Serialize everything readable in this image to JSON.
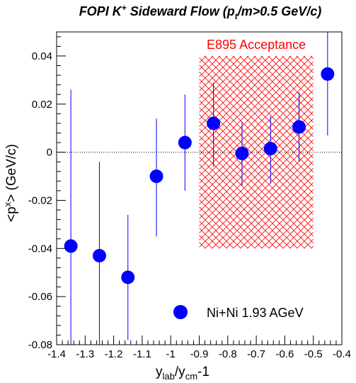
{
  "chart_data": {
    "type": "scatter",
    "title": {
      "prefix": "FOPI K",
      "sup": "+",
      "middle": " Sideward Flow (p",
      "sub": "t",
      "suffix": "/m>0.5 GeV/c)"
    },
    "xlabel": {
      "main": "y",
      "sub1": "lab",
      "slash": "/y",
      "sub2": "cm",
      "suffix": "-1"
    },
    "ylabel": {
      "pre": "<p",
      "sup": "x",
      "post": "> (GeV/c)"
    },
    "xlim": [
      -1.4,
      -0.4
    ],
    "ylim": [
      -0.08,
      0.05
    ],
    "x_ticks": [
      -1.4,
      -1.3,
      -1.2,
      -1.1,
      -1.0,
      -0.9,
      -0.8,
      -0.7,
      -0.6,
      -0.5,
      -0.4
    ],
    "x_tick_labels": [
      "-1.4",
      "-1.3",
      "-1.2",
      "-1.1",
      "-1",
      "-0.9",
      "-0.8",
      "-0.7",
      "-0.6",
      "-0.5",
      "-0.4"
    ],
    "y_ticks": [
      -0.08,
      -0.06,
      -0.04,
      -0.02,
      0,
      0.02,
      0.04
    ],
    "y_tick_labels": [
      "-0.08",
      "-0.06",
      "-0.04",
      "-0.02",
      "0",
      "0.02",
      "0.04"
    ],
    "grid": false,
    "zero_line": true,
    "series": [
      {
        "name": "Ni+Ni 1.93 AGeV",
        "color": "#0000ff",
        "points": [
          {
            "x": -1.35,
            "y": -0.039,
            "ylo": -0.08,
            "yhi": 0.026
          },
          {
            "x": -1.25,
            "y": -0.043,
            "ylo": -0.08,
            "yhi": -0.004
          },
          {
            "x": -1.15,
            "y": -0.052,
            "ylo": -0.078,
            "yhi": -0.026
          },
          {
            "x": -1.05,
            "y": -0.01,
            "ylo": -0.035,
            "yhi": 0.014
          },
          {
            "x": -0.95,
            "y": 0.004,
            "ylo": -0.016,
            "yhi": 0.024
          },
          {
            "x": -0.85,
            "y": 0.012,
            "ylo": -0.006,
            "yhi": 0.029
          },
          {
            "x": -0.75,
            "y": -0.0005,
            "ylo": -0.014,
            "yhi": 0.0125
          },
          {
            "x": -0.65,
            "y": 0.0015,
            "ylo": -0.013,
            "yhi": 0.015
          },
          {
            "x": -0.55,
            "y": 0.0105,
            "ylo": -0.004,
            "yhi": 0.025
          },
          {
            "x": -0.45,
            "y": 0.0325,
            "ylo": 0.007,
            "yhi": 0.05
          }
        ]
      }
    ],
    "acceptance_region": {
      "label": "E895 Acceptance",
      "x": [
        -0.9,
        -0.5
      ],
      "y": [
        -0.04,
        0.04
      ],
      "color": "#ff0000"
    },
    "legend": {
      "placement": "bottom-right",
      "label": "Ni+Ni 1.93 AGeV"
    }
  }
}
